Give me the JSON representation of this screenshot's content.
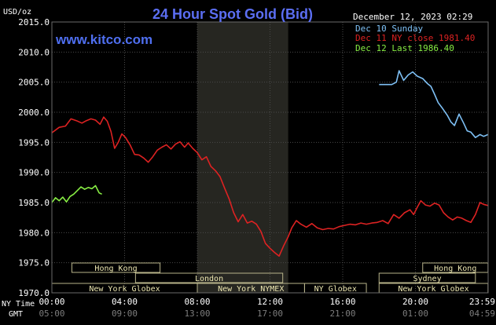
{
  "chart_data": {
    "type": "line",
    "title": "24 Hour Spot Gold (Bid)",
    "ylabel": "USD/oz",
    "watermark": "www.kitco.com",
    "timestamp": "December 12, 2023 02:29",
    "ylim": [
      1970.0,
      2015.0
    ],
    "y_ticks": [
      "2015.0",
      "2010.0",
      "2005.0",
      "2000.0",
      "1995.0",
      "1990.0",
      "1985.0",
      "1980.0",
      "1975.0",
      "1970.0"
    ],
    "x_hours": [
      0,
      4,
      8,
      12,
      16,
      20,
      24
    ],
    "x_labels_ny": [
      "00:00",
      "04:00",
      "08:00",
      "12:00",
      "16:00",
      "20:00",
      "23:59"
    ],
    "x_labels_gmt": [
      "05:00",
      "09:00",
      "13:00",
      "17:00",
      "21:00",
      "01:00",
      "04:59"
    ],
    "x_row_label_ny": "NY Time",
    "x_row_label_gmt": "GMT",
    "shaded_hours": [
      8.0,
      13.0
    ],
    "grid": true,
    "legend_position": "top-right",
    "series": [
      {
        "name": "Dec 10 Sunday",
        "color": "#7ec0f5",
        "x": [
          18.0,
          18.7,
          18.95,
          19.1,
          19.35,
          19.6,
          19.85,
          20.1,
          20.4,
          20.65,
          20.85,
          21.05,
          21.25,
          21.5,
          21.75,
          21.95,
          22.15,
          22.4,
          22.65,
          22.85,
          23.05,
          23.3,
          23.55,
          23.75,
          23.99
        ],
        "y": [
          2004.6,
          2004.6,
          2005.0,
          2006.9,
          2005.3,
          2006.2,
          2006.7,
          2006.0,
          2005.6,
          2004.8,
          2004.3,
          2003.0,
          2001.6,
          2000.6,
          1999.5,
          1998.4,
          1997.8,
          1999.7,
          1998.2,
          1996.9,
          1996.7,
          1995.8,
          1996.3,
          1996.0,
          1996.3
        ]
      },
      {
        "name": "Dec 11 NY close 1981.40",
        "color": "#dd2222",
        "x": [
          0.0,
          0.4,
          0.75,
          1.05,
          1.35,
          1.65,
          1.9,
          2.15,
          2.4,
          2.65,
          2.85,
          3.05,
          3.25,
          3.45,
          3.65,
          3.85,
          4.05,
          4.3,
          4.55,
          4.8,
          5.05,
          5.3,
          5.55,
          5.8,
          6.05,
          6.3,
          6.55,
          6.8,
          7.05,
          7.3,
          7.5,
          7.75,
          8.0,
          8.25,
          8.5,
          8.75,
          9.0,
          9.25,
          9.5,
          9.75,
          10.0,
          10.25,
          10.5,
          10.75,
          11.0,
          11.25,
          11.5,
          11.75,
          12.0,
          12.25,
          12.5,
          12.75,
          13.0,
          13.2,
          13.45,
          13.7,
          14.0,
          14.3,
          14.6,
          14.9,
          15.2,
          15.5,
          15.8,
          16.1,
          16.4,
          16.7,
          17.0,
          17.3,
          17.6,
          17.9,
          18.2,
          18.5,
          18.8,
          19.1,
          19.4,
          19.7,
          19.9,
          20.1,
          20.3,
          20.55,
          20.8,
          21.05,
          21.3,
          21.55,
          21.8,
          22.05,
          22.3,
          22.55,
          22.8,
          23.05,
          23.3,
          23.55,
          23.75,
          23.99
        ],
        "y": [
          1996.6,
          1997.5,
          1997.7,
          1998.9,
          1998.6,
          1998.2,
          1998.6,
          1998.9,
          1998.7,
          1998.0,
          1999.2,
          1998.5,
          1996.8,
          1994.0,
          1995.0,
          1996.4,
          1995.8,
          1994.6,
          1993.0,
          1992.9,
          1992.4,
          1991.7,
          1992.6,
          1993.7,
          1994.2,
          1994.6,
          1993.9,
          1994.7,
          1995.1,
          1994.2,
          1994.9,
          1994.0,
          1993.3,
          1992.1,
          1992.6,
          1991.0,
          1990.3,
          1989.3,
          1987.4,
          1985.6,
          1983.3,
          1981.8,
          1983.0,
          1981.6,
          1981.9,
          1981.4,
          1980.2,
          1978.2,
          1977.4,
          1976.7,
          1976.1,
          1977.8,
          1979.3,
          1980.8,
          1982.0,
          1981.4,
          1980.9,
          1981.5,
          1980.8,
          1980.5,
          1980.7,
          1980.6,
          1981.0,
          1981.2,
          1981.4,
          1981.3,
          1981.6,
          1981.4,
          1981.6,
          1981.7,
          1982.0,
          1981.5,
          1983.0,
          1982.4,
          1983.3,
          1983.8,
          1983.0,
          1984.2,
          1985.3,
          1984.6,
          1984.4,
          1984.9,
          1984.6,
          1983.3,
          1982.6,
          1982.1,
          1982.6,
          1982.4,
          1982.0,
          1981.7,
          1983.0,
          1985.0,
          1984.7,
          1984.5
        ]
      },
      {
        "name": "Dec 12 Last 1986.40",
        "color": "#88ee44",
        "x": [
          0.0,
          0.2,
          0.4,
          0.6,
          0.8,
          1.0,
          1.2,
          1.4,
          1.6,
          1.8,
          2.0,
          2.2,
          2.4,
          2.6,
          2.75
        ],
        "y": [
          1985.0,
          1985.8,
          1985.3,
          1985.9,
          1985.1,
          1986.0,
          1986.4,
          1987.0,
          1987.6,
          1987.2,
          1987.5,
          1987.3,
          1987.8,
          1986.6,
          1986.4
        ]
      }
    ],
    "sessions": [
      {
        "label": "Hong Kong",
        "start": 1.1,
        "end": 5.95,
        "row": 0
      },
      {
        "label": "London",
        "start": 4.6,
        "end": 12.7,
        "row": 1
      },
      {
        "label": "New York Globex",
        "start": 0.0,
        "end": 8.0,
        "row": 2
      },
      {
        "label": "New York NYMEX",
        "start": 8.0,
        "end": 13.9,
        "row": 2
      },
      {
        "label": "NY Globex",
        "start": 13.9,
        "end": 17.3,
        "row": 2
      },
      {
        "label": "Hong Kong",
        "start": 20.4,
        "end": 23.99,
        "row": 0
      },
      {
        "label": "Sydney",
        "start": 18.0,
        "end": 23.3,
        "row": 1
      },
      {
        "label": "New York Globex",
        "start": 18.0,
        "end": 23.99,
        "row": 2
      }
    ]
  }
}
